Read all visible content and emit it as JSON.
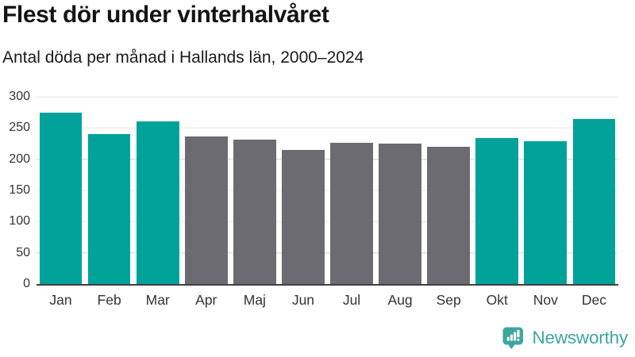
{
  "chart_data": {
    "type": "bar",
    "title": "Flest dör under vinterhalvåret",
    "subtitle": "Antal döda per månad i Hallands län, 2000–2024",
    "categories": [
      "Jan",
      "Feb",
      "Mar",
      "Apr",
      "Maj",
      "Jun",
      "Jul",
      "Aug",
      "Sep",
      "Okt",
      "Nov",
      "Dec"
    ],
    "values": [
      274,
      240,
      261,
      236,
      231,
      215,
      226,
      225,
      220,
      234,
      229,
      264
    ],
    "highlight_flags": [
      true,
      true,
      true,
      false,
      false,
      false,
      false,
      false,
      false,
      true,
      true,
      true
    ],
    "xlabel": "",
    "ylabel": "",
    "ylim": [
      0,
      300
    ],
    "yticks": [
      0,
      50,
      100,
      150,
      200,
      250,
      300
    ],
    "grid": true,
    "legend": "none",
    "colors": {
      "highlight": "#00a29a",
      "other": "#6c6b72",
      "gridline": "#e5e5e8",
      "axis_line": "#404040",
      "tick_text": "#333333"
    }
  },
  "footer": {
    "brand": "Newsworthy",
    "brand_color": "#3ea69d"
  }
}
